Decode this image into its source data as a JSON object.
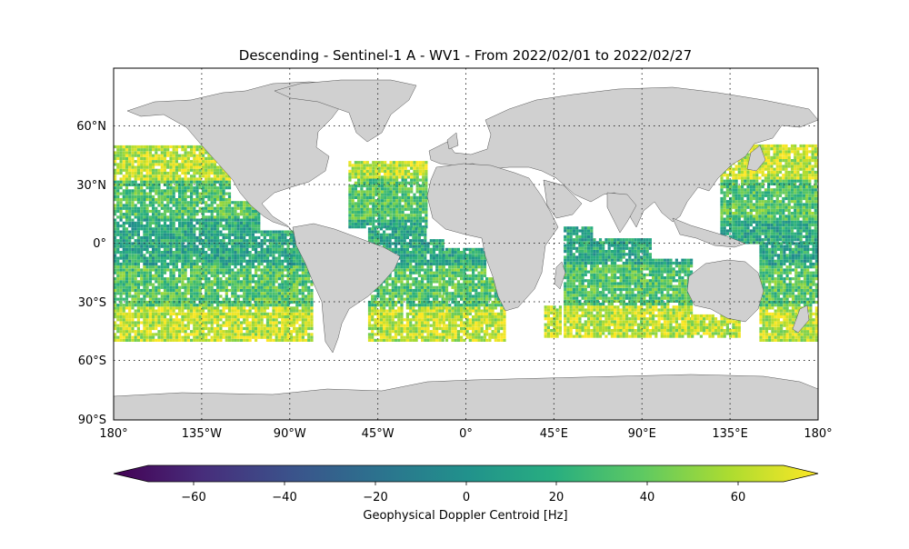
{
  "title": "Descending - Sentinel-1 A - WV1 - From 2022/02/01 to 2022/02/27",
  "lat_ticks": [
    "60°N",
    "30°N",
    "0°",
    "30°S",
    "60°S",
    "90°S"
  ],
  "lon_ticks": [
    "180°",
    "135°W",
    "90°W",
    "45°W",
    "0°",
    "45°E",
    "90°E",
    "135°E",
    "180°"
  ],
  "colorbar": {
    "label": "Geophysical Doppler Centroid [Hz]",
    "ticks": [
      "−60",
      "−40",
      "−20",
      "0",
      "20",
      "40",
      "60"
    ],
    "min": -70,
    "max": 70,
    "colormap": "viridis",
    "extend": "both"
  },
  "chart_data": {
    "type": "heatmap",
    "projection": "PlateCarree",
    "lon_range": [
      -180,
      180
    ],
    "lat_range": [
      -90,
      90
    ],
    "variable": "Geophysical Doppler Centroid [Hz]",
    "value_range": [
      -70,
      70
    ],
    "gridlines": {
      "lon_step": 45,
      "lat_step": 30,
      "style": "dotted"
    },
    "land_color": "#d0d0d0",
    "swath_lat_extent": [
      -50,
      50
    ]
  }
}
